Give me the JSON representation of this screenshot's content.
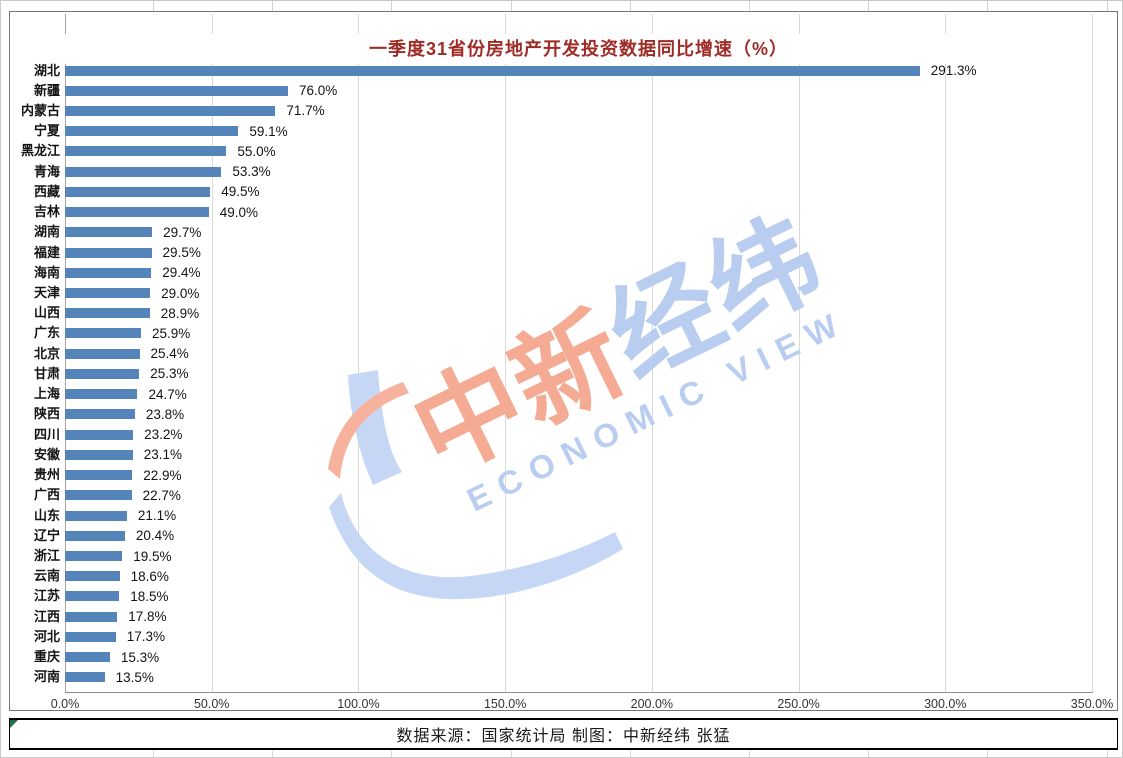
{
  "title": {
    "text": "一季度31省份房地产开发投资数据同比增速（%）",
    "color": "#9E2B25"
  },
  "chart_data": {
    "type": "bar",
    "orientation": "horizontal",
    "title": "一季度31省份房地产开发投资数据同比增速（%）",
    "unit": "%",
    "categories": [
      "湖北",
      "新疆",
      "内蒙古",
      "宁夏",
      "黑龙江",
      "青海",
      "西藏",
      "吉林",
      "湖南",
      "福建",
      "海南",
      "天津",
      "山西",
      "广东",
      "北京",
      "甘肃",
      "上海",
      "陕西",
      "四川",
      "安徽",
      "贵州",
      "广西",
      "山东",
      "辽宁",
      "浙江",
      "云南",
      "江苏",
      "江西",
      "河北",
      "重庆",
      "河南"
    ],
    "values": [
      291.3,
      76.0,
      71.7,
      59.1,
      55.0,
      53.3,
      49.5,
      49.0,
      29.7,
      29.5,
      29.4,
      29.0,
      28.9,
      25.9,
      25.4,
      25.3,
      24.7,
      23.8,
      23.2,
      23.1,
      22.9,
      22.7,
      21.1,
      20.4,
      19.5,
      18.6,
      18.5,
      17.8,
      17.3,
      15.3,
      13.5
    ],
    "x_axis": {
      "min": 0,
      "max": 350,
      "tick_step": 50,
      "tick_labels": [
        "0.0%",
        "50.0%",
        "100.0%",
        "150.0%",
        "200.0%",
        "250.0%",
        "300.0%",
        "350.0%"
      ]
    },
    "grid": true,
    "legend": false,
    "data_labels": true,
    "bar_color": "#5484BA"
  },
  "footer": {
    "text": "数据来源：国家统计局 制图：中新经纬 张猛"
  },
  "watermark": {
    "cn_red": "中新",
    "cn_blue": "经纬",
    "en": "ECONOMIC VIEW",
    "color_red": "#F5AB93",
    "color_blue": "#B9CDF1",
    "logo_blue": "#C5D7F5",
    "logo_red": "#F6B29C"
  },
  "colors": {
    "gridline": "#d9d9d9",
    "axis": "#8c8c8c",
    "comment_green": "#1E7145"
  }
}
